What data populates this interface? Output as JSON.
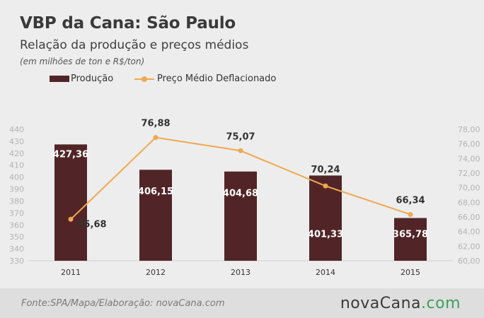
{
  "title": "VBP da Cana: São Paulo",
  "subtitle": "Relação da produção e preços médios",
  "note": "(em milhões de ton e R$/ton)",
  "footer": {
    "source": "Fonte:SPA/Mapa/Elaboração: novaCana.com",
    "brand_name": "novaCana",
    "brand_domain": ".com"
  },
  "colors": {
    "bar": "#512527",
    "line": "#f0a84f",
    "background": "#ededed",
    "footer_bg": "#dedede",
    "brand_accent": "#3aa25a"
  },
  "chart_data": {
    "type": "bar+line",
    "categories": [
      "2011",
      "2012",
      "2013",
      "2014",
      "2015"
    ],
    "series": [
      {
        "name": "Produção",
        "type": "bar",
        "axis": "left",
        "values": [
          427.36,
          406.15,
          404.68,
          401.33,
          365.78
        ],
        "labels": [
          "427,36",
          "406,15",
          "404,68",
          "401,33",
          "365,78"
        ]
      },
      {
        "name": "Preço Médio Deflacionado",
        "type": "line",
        "axis": "right",
        "values": [
          65.68,
          76.88,
          75.07,
          70.24,
          66.34
        ],
        "labels": [
          "65,68",
          "76,88",
          "75,07",
          "70,24",
          "66,34"
        ]
      }
    ],
    "y_left": {
      "min": 330,
      "max": 440,
      "step": 10,
      "ticks": [
        "330",
        "340",
        "350",
        "360",
        "370",
        "380",
        "390",
        "400",
        "410",
        "420",
        "430",
        "440"
      ]
    },
    "y_right": {
      "min": 60,
      "max": 78,
      "step": 2,
      "ticks": [
        "60,00",
        "62,00",
        "64,00",
        "66,00",
        "68,00",
        "70,00",
        "72,00",
        "74,00",
        "76,00",
        "78,00"
      ]
    },
    "legend": "top-left",
    "grid": false
  }
}
